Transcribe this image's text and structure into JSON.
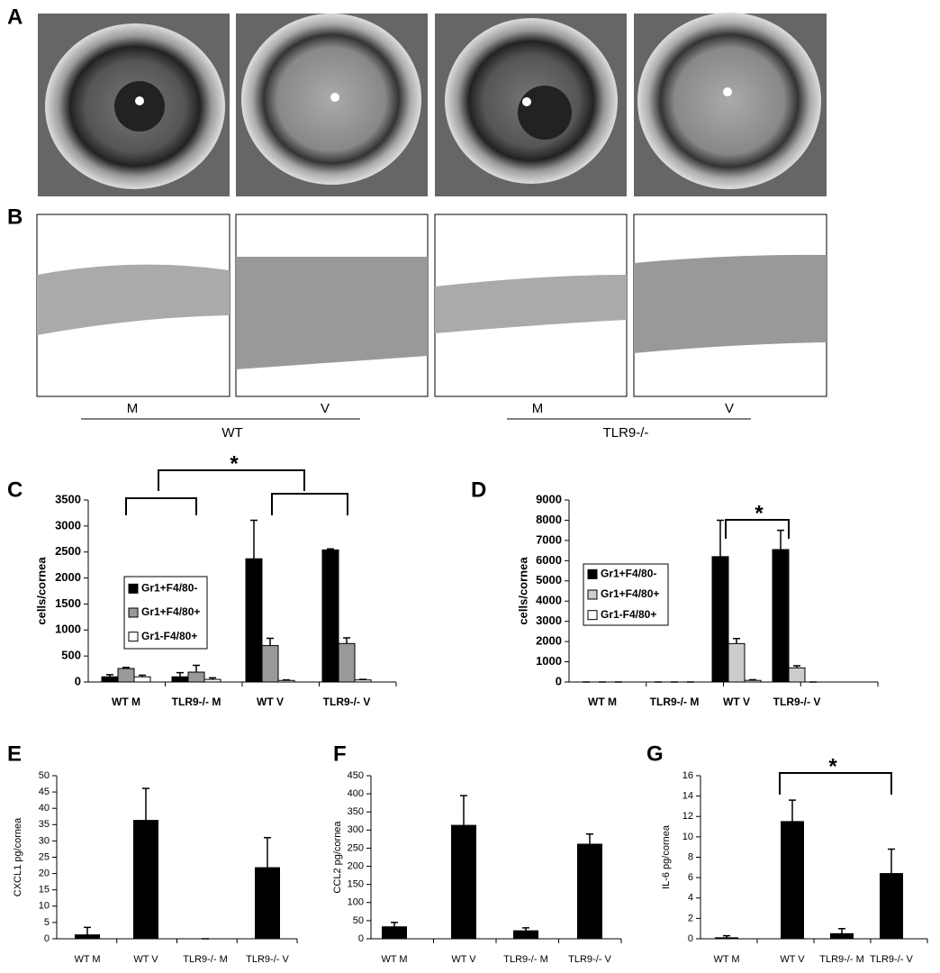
{
  "figure": {
    "panel_labels": [
      "A",
      "B"
    ],
    "groups": [
      {
        "name": "WT",
        "conditions": [
          "M",
          "V"
        ]
      },
      {
        "name": "TLR9-/-",
        "conditions": [
          "M",
          "V"
        ]
      }
    ]
  },
  "chart_data": [
    {
      "type": "bar",
      "label": "C",
      "ylabel": "cells/cornea",
      "categories": [
        "WT M",
        "TLR9-/- M",
        "WT V",
        "TLR9-/- V"
      ],
      "series": [
        {
          "name": "Gr1+F4/80-",
          "color": "#000000",
          "values": [
            100,
            100,
            2370,
            2540
          ],
          "errors": [
            40,
            80,
            740,
            20
          ]
        },
        {
          "name": "Gr1+F4/80+",
          "color": "#999999",
          "values": [
            260,
            190,
            700,
            740
          ],
          "errors": [
            20,
            130,
            140,
            110
          ]
        },
        {
          "name": "Gr1-F4/80+",
          "color": "#ffffff",
          "values": [
            100,
            50,
            30,
            40
          ],
          "errors": [
            30,
            30,
            10,
            10
          ]
        }
      ],
      "ylim": [
        0,
        3500
      ],
      "yticks": [
        0,
        500,
        1000,
        1500,
        2000,
        2500,
        3000,
        3500
      ],
      "legend": "left",
      "annotations": [
        {
          "text": "*"
        }
      ]
    },
    {
      "type": "bar",
      "label": "D",
      "ylabel": "cells/cornea",
      "categories": [
        "WT M",
        "TLR9-/- M",
        "WT V",
        "TLR9-/- V"
      ],
      "series": [
        {
          "name": "Gr1+F4/80-",
          "color": "#000000",
          "values": [
            0,
            0,
            6200,
            6550
          ],
          "errors": [
            0,
            0,
            1800,
            950
          ]
        },
        {
          "name": "Gr1+F4/80+",
          "color": "#cccccc",
          "values": [
            0,
            0,
            1900,
            700
          ],
          "errors": [
            0,
            0,
            250,
            100
          ]
        },
        {
          "name": "Gr1-F4/80+",
          "color": "#ffffff",
          "values": [
            0,
            0,
            80,
            0
          ],
          "errors": [
            0,
            0,
            30,
            0
          ]
        }
      ],
      "ylim": [
        0,
        9000
      ],
      "yticks": [
        0,
        1000,
        2000,
        3000,
        4000,
        5000,
        6000,
        7000,
        8000,
        9000
      ],
      "legend": "left",
      "annotations": [
        {
          "text": "*"
        }
      ]
    },
    {
      "type": "bar",
      "label": "E",
      "ylabel": "CXCL1 pg/cornea",
      "categories": [
        "WT M",
        "WT V",
        "TLR9-/- M",
        "TLR9-/- V"
      ],
      "values": [
        1.2,
        36.3,
        0,
        21.8
      ],
      "errors": [
        2.3,
        9.8,
        0,
        9.2
      ],
      "color": "#000000",
      "ylim": [
        0,
        50
      ],
      "yticks": [
        0,
        5,
        10,
        15,
        20,
        25,
        30,
        35,
        40,
        45,
        50
      ]
    },
    {
      "type": "bar",
      "label": "F",
      "ylabel": "CCL2 pg/cornea",
      "categories": [
        "WT M",
        "WT V",
        "TLR9-/- M",
        "TLR9-/- V"
      ],
      "values": [
        33,
        313,
        22,
        261
      ],
      "errors": [
        12,
        82,
        8,
        28
      ],
      "color": "#000000",
      "ylim": [
        0,
        450
      ],
      "yticks": [
        0,
        50,
        100,
        150,
        200,
        250,
        300,
        350,
        400,
        450
      ]
    },
    {
      "type": "bar",
      "label": "G",
      "ylabel": "IL-6 pg/cornea",
      "categories": [
        "WT M",
        "WT V",
        "TLR9-/- M",
        "TLR9-/- V"
      ],
      "values": [
        0.1,
        11.5,
        0.5,
        6.4
      ],
      "errors": [
        0.2,
        2.1,
        0.5,
        2.4
      ],
      "color": "#000000",
      "ylim": [
        0,
        16
      ],
      "yticks": [
        0,
        2,
        4,
        6,
        8,
        10,
        12,
        14,
        16
      ],
      "annotations": [
        {
          "text": "*"
        }
      ]
    }
  ]
}
